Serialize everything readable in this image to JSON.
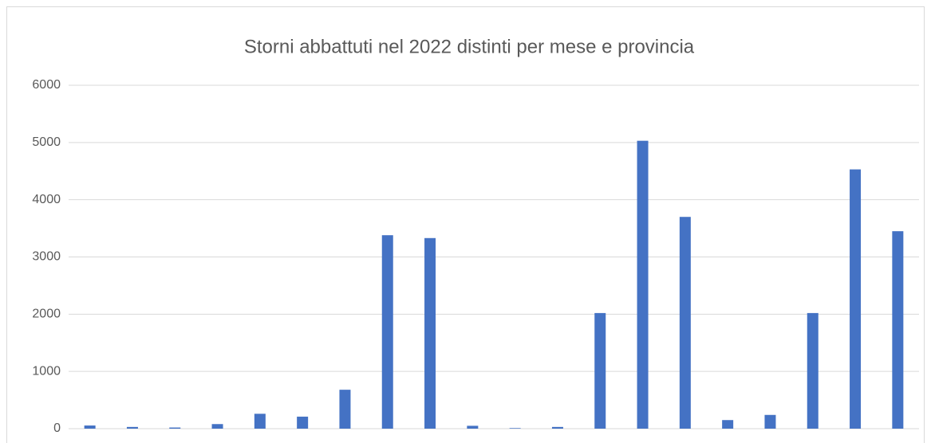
{
  "chart_data": {
    "type": "bar",
    "title": "Storni abbattuti nel 2022 distinti per mese e provincia",
    "categories": [
      null,
      null,
      null,
      null,
      null,
      null,
      null,
      null,
      null,
      null,
      null,
      null,
      null,
      null,
      null,
      null,
      null,
      null,
      null,
      null
    ],
    "values": [
      55,
      30,
      20,
      80,
      260,
      210,
      680,
      3380,
      3330,
      50,
      10,
      30,
      2020,
      5030,
      3700,
      150,
      240,
      2020,
      4530,
      3450
    ],
    "color": "#4472c4",
    "ylim": [
      0,
      6000
    ],
    "yticks": [
      0,
      1000,
      2000,
      3000,
      4000,
      5000,
      6000
    ],
    "grid": true
  }
}
